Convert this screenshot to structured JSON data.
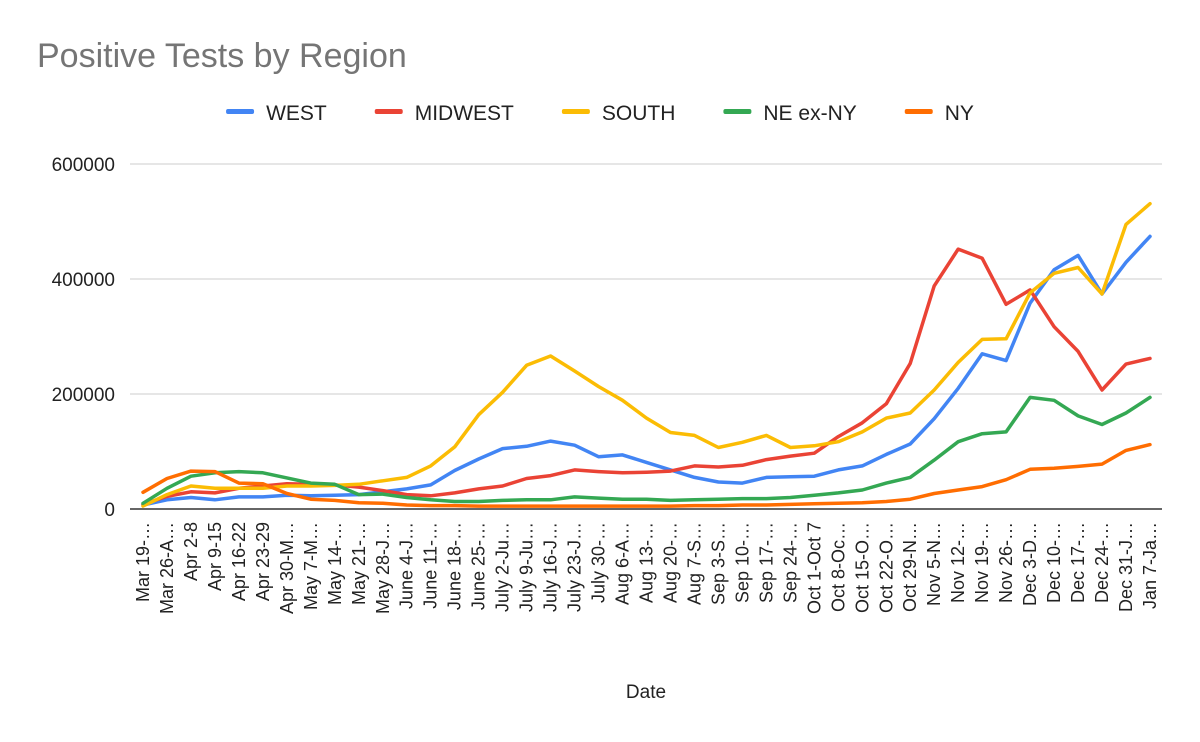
{
  "chart_data": {
    "type": "line",
    "title": "Positive Tests by Region",
    "xlabel": "Date",
    "ylabel": "",
    "ylim": [
      0,
      600000
    ],
    "yticks": [
      0,
      200000,
      400000,
      600000
    ],
    "ytick_labels": [
      "0",
      "200000",
      "400000",
      "600000"
    ],
    "legend_position": "top",
    "grid": true,
    "categories": [
      "Mar 19-…",
      "Mar 26-A…",
      "Apr 2-8",
      "Apr 9-15",
      "Apr 16-22",
      "Apr 23-29",
      "Apr 30-M…",
      "May 7-M…",
      "May 14-…",
      "May 21-…",
      "May 28-J…",
      "June 4-J…",
      "June 11-…",
      "June 18-…",
      "June 25-…",
      "July 2-Ju…",
      "July 9-Ju…",
      "July 16-J…",
      "July 23-J…",
      "July 30-…",
      "Aug 6-A…",
      "Aug 13-…",
      "Aug 20-…",
      "Aug 7-S…",
      "Sep 3-S…",
      "Sep 10-…",
      "Sep 17-…",
      "Sep 24-…",
      "Oct 1-Oct 7",
      "Oct 8-Oc…",
      "Oct 15-O…",
      "Oct 22-O…",
      "Oct 29-N…",
      "Nov 5-N…",
      "Nov 12-…",
      "Nov 19-…",
      "Nov 26-…",
      "Dec 3-D…",
      "Dec 10-…",
      "Dec 17-…",
      "Dec 24-…",
      "Dec 31-J…",
      "Jan 7-Ja…"
    ],
    "series": [
      {
        "name": "WEST",
        "color": "#4285f4",
        "values": [
          7000,
          16000,
          20000,
          16000,
          21000,
          21000,
          24000,
          23000,
          24000,
          25000,
          30000,
          35000,
          42000,
          67000,
          87000,
          105000,
          109000,
          118000,
          111000,
          91000,
          94000,
          81000,
          68000,
          55000,
          47000,
          45000,
          55000,
          56000,
          57000,
          68000,
          75000,
          95000,
          113000,
          157000,
          210000,
          270000,
          258000,
          358000,
          416000,
          441000,
          374000,
          429000,
          474000
        ]
      },
      {
        "name": "MIDWEST",
        "color": "#ea4335",
        "values": [
          8000,
          22000,
          30000,
          28000,
          36000,
          40000,
          44000,
          43000,
          42000,
          38000,
          32000,
          25000,
          23000,
          28000,
          35000,
          40000,
          53000,
          58000,
          68000,
          65000,
          63000,
          64000,
          66000,
          75000,
          73000,
          76000,
          86000,
          92000,
          97000,
          126000,
          150000,
          183000,
          253000,
          388000,
          452000,
          436000,
          356000,
          381000,
          317000,
          274000,
          207000,
          252000,
          262000
        ]
      },
      {
        "name": "SOUTH",
        "color": "#fbbc04",
        "values": [
          5000,
          25000,
          40000,
          36000,
          36000,
          36000,
          40000,
          40000,
          41000,
          43000,
          49000,
          55000,
          75000,
          108000,
          164000,
          203000,
          250000,
          266000,
          240000,
          213000,
          189000,
          158000,
          133000,
          128000,
          107000,
          116000,
          128000,
          107000,
          110000,
          117000,
          134000,
          158000,
          167000,
          207000,
          255000,
          295000,
          296000,
          376000,
          410000,
          420000,
          374000,
          495000,
          531000
        ]
      },
      {
        "name": "NE ex-NY",
        "color": "#34a853",
        "values": [
          10000,
          36000,
          57000,
          63000,
          65000,
          63000,
          54000,
          45000,
          43000,
          25000,
          26000,
          20000,
          16000,
          13000,
          13000,
          15000,
          16000,
          16000,
          21000,
          19000,
          17000,
          17000,
          15000,
          16000,
          17000,
          18000,
          18000,
          20000,
          24000,
          28000,
          33000,
          45000,
          55000,
          85000,
          117000,
          131000,
          134000,
          194000,
          189000,
          162000,
          147000,
          167000,
          194000
        ]
      },
      {
        "name": "NY",
        "color": "#ff6d01",
        "values": [
          29000,
          53000,
          66000,
          65000,
          45000,
          44000,
          27000,
          17000,
          15000,
          11000,
          10000,
          7000,
          6000,
          6000,
          5000,
          5000,
          5000,
          5000,
          5000,
          5000,
          5000,
          5000,
          5000,
          6000,
          6000,
          7000,
          7000,
          8000,
          9000,
          10000,
          11000,
          13000,
          17000,
          27000,
          33000,
          39000,
          51000,
          69000,
          71000,
          74000,
          78000,
          102000,
          112000
        ]
      }
    ]
  }
}
